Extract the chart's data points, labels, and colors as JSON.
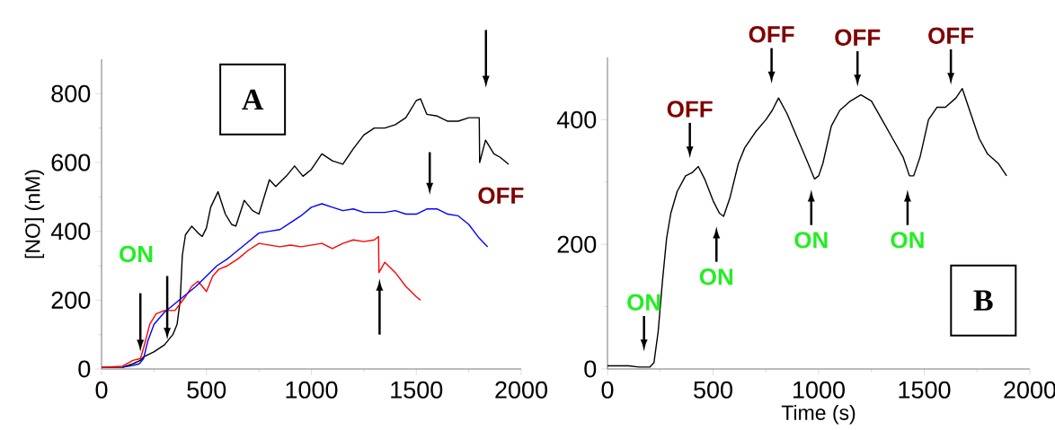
{
  "chart_data": [
    {
      "type": "line",
      "ylabel": "[NO] (nM)",
      "xlim": [
        0,
        2000
      ],
      "xticks": [
        0,
        500,
        1000,
        1500,
        2000
      ],
      "ylim": [
        0,
        900
      ],
      "yticks": [
        0,
        200,
        400,
        600,
        800
      ],
      "series": [
        {
          "color": "#000000",
          "x": [
            0,
            100,
            150,
            185,
            200,
            250,
            300,
            340,
            360,
            375,
            385,
            400,
            430,
            460,
            480,
            500,
            520,
            555,
            590,
            620,
            640,
            680,
            720,
            750,
            800,
            830,
            880,
            920,
            960,
            1000,
            1050,
            1100,
            1150,
            1200,
            1250,
            1300,
            1350,
            1400,
            1450,
            1500,
            1520,
            1550,
            1600,
            1650,
            1700,
            1750,
            1800,
            1802,
            1830,
            1870,
            1900,
            1940
          ],
          "values": [
            5,
            5,
            15,
            25,
            35,
            50,
            70,
            100,
            130,
            200,
            330,
            390,
            415,
            395,
            385,
            410,
            470,
            515,
            450,
            420,
            415,
            490,
            460,
            450,
            550,
            530,
            560,
            590,
            560,
            580,
            625,
            605,
            595,
            640,
            680,
            700,
            700,
            710,
            730,
            780,
            785,
            740,
            735,
            720,
            720,
            730,
            730,
            600,
            665,
            625,
            615,
            595
          ]
        },
        {
          "color": "#ff0000",
          "x": [
            0,
            100,
            150,
            185,
            200,
            230,
            260,
            300,
            350,
            400,
            430,
            460,
            480,
            500,
            530,
            560,
            600,
            650,
            700,
            750,
            800,
            850,
            900,
            950,
            1000,
            1050,
            1100,
            1150,
            1200,
            1250,
            1300,
            1320,
            1322,
            1350,
            1400,
            1450,
            1500,
            1520
          ],
          "values": [
            5,
            8,
            25,
            30,
            60,
            130,
            160,
            170,
            170,
            210,
            240,
            255,
            240,
            225,
            270,
            290,
            300,
            320,
            345,
            365,
            360,
            355,
            360,
            355,
            360,
            365,
            350,
            365,
            375,
            370,
            375,
            385,
            280,
            310,
            280,
            240,
            210,
            200
          ]
        },
        {
          "color": "#0000ff",
          "x": [
            100,
            150,
            180,
            200,
            220,
            250,
            300,
            350,
            400,
            450,
            500,
            550,
            600,
            650,
            700,
            750,
            800,
            850,
            900,
            950,
            1000,
            1050,
            1100,
            1150,
            1200,
            1250,
            1300,
            1350,
            1400,
            1450,
            1500,
            1550,
            1600,
            1650,
            1700,
            1750,
            1800,
            1840
          ],
          "values": [
            5,
            10,
            15,
            30,
            80,
            130,
            165,
            190,
            215,
            240,
            270,
            300,
            320,
            345,
            370,
            395,
            400,
            405,
            425,
            445,
            470,
            480,
            470,
            460,
            465,
            455,
            455,
            455,
            460,
            450,
            450,
            465,
            465,
            450,
            445,
            420,
            380,
            355
          ]
        }
      ],
      "annotations": [
        "A",
        "ON",
        "OFF"
      ]
    },
    {
      "type": "line",
      "xlabel": "Time (s)",
      "xlim": [
        0,
        2000
      ],
      "xticks": [
        0,
        500,
        1000,
        1500,
        2000
      ],
      "ylim": [
        0,
        500
      ],
      "yticks": [
        0,
        200,
        400
      ],
      "series": [
        {
          "color": "#000000",
          "x": [
            0,
            50,
            100,
            150,
            200,
            220,
            240,
            260,
            280,
            300,
            330,
            370,
            400,
            430,
            460,
            500,
            530,
            550,
            580,
            620,
            650,
            700,
            750,
            780,
            810,
            850,
            900,
            950,
            980,
            1000,
            1020,
            1060,
            1100,
            1150,
            1200,
            1250,
            1300,
            1350,
            1400,
            1430,
            1450,
            1480,
            1520,
            1560,
            1600,
            1650,
            1680,
            1720,
            1760,
            1800,
            1850,
            1890
          ],
          "values": [
            5,
            5,
            5,
            3,
            3,
            10,
            60,
            140,
            210,
            250,
            285,
            310,
            315,
            325,
            305,
            270,
            250,
            245,
            275,
            330,
            355,
            380,
            400,
            415,
            435,
            410,
            370,
            330,
            305,
            310,
            330,
            390,
            415,
            430,
            440,
            430,
            400,
            370,
            340,
            310,
            310,
            340,
            400,
            420,
            420,
            435,
            450,
            410,
            370,
            345,
            330,
            310
          ]
        }
      ],
      "annotations": [
        "ON",
        "OFF",
        "ON",
        "OFF",
        "ON",
        "OFF",
        "ON",
        "OFF",
        "B"
      ]
    }
  ]
}
